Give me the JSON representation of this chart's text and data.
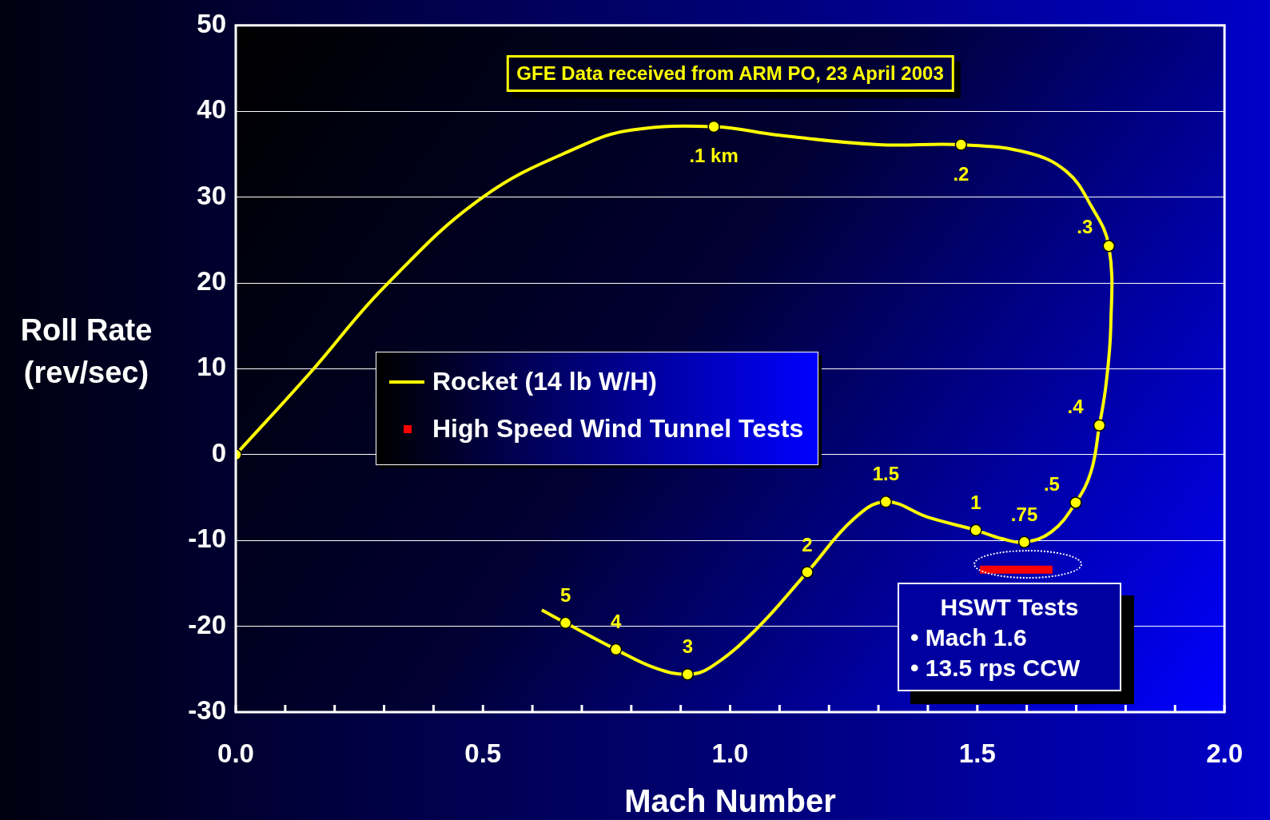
{
  "chart_data": {
    "type": "line",
    "title": "GFE Data received from ARM PO, 23 April 2003",
    "xlabel": "Mach Number",
    "ylabel": "Roll Rate (rev/sec)",
    "xlim": [
      0,
      2
    ],
    "ylim": [
      -30,
      50
    ],
    "xticks": [
      {
        "value": 0,
        "label": "0.0"
      },
      {
        "value": 0.1,
        "label": null
      },
      {
        "value": 0.2,
        "label": null
      },
      {
        "value": 0.3,
        "label": null
      },
      {
        "value": 0.4,
        "label": null
      },
      {
        "value": 0.5,
        "label": "0.5"
      },
      {
        "value": 0.6,
        "label": null
      },
      {
        "value": 0.7,
        "label": null
      },
      {
        "value": 0.8,
        "label": null
      },
      {
        "value": 0.9,
        "label": null
      },
      {
        "value": 1,
        "label": "1.0"
      },
      {
        "value": 1.1,
        "label": null
      },
      {
        "value": 1.2,
        "label": null
      },
      {
        "value": 1.3,
        "label": null
      },
      {
        "value": 1.4,
        "label": null
      },
      {
        "value": 1.5,
        "label": "1.5"
      },
      {
        "value": 1.6,
        "label": null
      },
      {
        "value": 1.7,
        "label": null
      },
      {
        "value": 1.8,
        "label": null
      },
      {
        "value": 1.9,
        "label": null
      },
      {
        "value": 2,
        "label": "2.0"
      }
    ],
    "yticks": [
      -30,
      -20,
      -10,
      0,
      10,
      20,
      30,
      40,
      50
    ],
    "grid": "y",
    "legend": "left",
    "series": [
      {
        "name": "Rocket (14 lb W/H)",
        "type": "line",
        "color": "#ffff00",
        "marker": "none",
        "x": [
          0,
          0.15,
          0.3,
          0.5,
          0.7,
          0.8,
          0.967,
          1.1,
          1.3,
          1.467,
          1.6,
          1.68,
          1.73,
          1.766,
          1.77,
          1.76,
          1.747,
          1.73,
          1.699,
          1.65,
          1.595,
          1.55,
          1.497,
          1.4,
          1.315,
          1.25,
          1.156,
          1.05,
          0.96,
          0.914,
          0.85,
          0.769,
          0.667,
          0.619
        ],
        "values": [
          0,
          9.5,
          19.5,
          30,
          36,
          37.8,
          38.2,
          37.2,
          36.1,
          36.1,
          35.2,
          33,
          29,
          24.3,
          15,
          8,
          3.4,
          -2,
          -5.6,
          -9,
          -10.2,
          -9.8,
          -8.8,
          -7.3,
          -5.5,
          -7.5,
          -13.7,
          -20.5,
          -24.8,
          -25.6,
          -24.9,
          -22.7,
          -19.6,
          -18.1
        ]
      },
      {
        "type": "scatter",
        "color": "#ffff00",
        "marker": "circle",
        "x": [
          0,
          0.967,
          1.467,
          1.766,
          1.747,
          1.699,
          1.595,
          1.497,
          1.315,
          1.156,
          0.914,
          0.769,
          0.667
        ],
        "values": [
          0,
          38.2,
          36.1,
          24.3,
          3.4,
          -5.6,
          -10.2,
          -8.8,
          -5.5,
          -13.7,
          -25.6,
          -22.7,
          -19.6
        ]
      },
      {
        "name": "High Speed Wind Tunnel Tests",
        "type": "line",
        "color": "#ff0000",
        "marker": "none",
        "x": [
          1.505,
          1.652
        ],
        "values": [
          -13.4,
          -13.4
        ]
      }
    ],
    "annotations": [
      {
        "text": ".1 km",
        "x": 0.967,
        "y": 38.2
      },
      {
        "text": ".2",
        "x": 1.467,
        "y": 36.1
      },
      {
        "text": ".3",
        "x": 1.766,
        "y": 24.3
      },
      {
        "text": ".4",
        "x": 1.747,
        "y": 3.4
      },
      {
        "text": ".5",
        "x": 1.699,
        "y": -5.6
      },
      {
        "text": ".75",
        "x": 1.595,
        "y": -10.2
      },
      {
        "text": "1",
        "x": 1.497,
        "y": -8.8
      },
      {
        "text": "1.5",
        "x": 1.315,
        "y": -5.5
      },
      {
        "text": "2",
        "x": 1.156,
        "y": -13.7
      },
      {
        "text": "3",
        "x": 0.914,
        "y": -25.6
      },
      {
        "text": "4",
        "x": 0.769,
        "y": -22.7
      },
      {
        "text": "5",
        "x": 0.667,
        "y": -19.6
      },
      "HSWT Tests",
      "• Mach 1.6",
      "• 13.5 rps CCW"
    ]
  }
}
